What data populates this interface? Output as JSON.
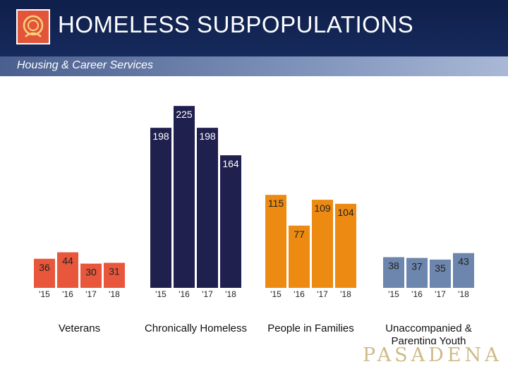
{
  "header": {
    "title": "HOMELESS SUBPOPULATIONS",
    "subtitle": "Housing & Career Services"
  },
  "brand": "PASADENA",
  "colors": {
    "header_bg": "#12224f",
    "veterans": "#e8563c",
    "chronically_homeless": "#20204f",
    "families": "#ec8a12",
    "youth": "#6d86ad"
  },
  "chart_data": {
    "type": "bar",
    "title": "",
    "xlabel": "",
    "ylabel": "",
    "ylim": [
      0,
      240
    ],
    "grid": false,
    "legend": "none",
    "groups": [
      {
        "label": "Veterans",
        "color": "#e8563c",
        "categories": [
          "'15",
          "'16",
          "'17",
          "'18"
        ],
        "values": [
          36,
          44,
          30,
          31
        ]
      },
      {
        "label": "Chronically Homeless",
        "color": "#20204f",
        "categories": [
          "'15",
          "'16",
          "'17",
          "'18"
        ],
        "values": [
          198,
          225,
          198,
          164
        ]
      },
      {
        "label": "People in Families",
        "color": "#ec8a12",
        "categories": [
          "'15",
          "'16",
          "'17",
          "'18"
        ],
        "values": [
          115,
          77,
          109,
          104
        ]
      },
      {
        "label": "Unaccompanied & Parenting Youth",
        "color": "#6d86ad",
        "categories": [
          "'15",
          "'16",
          "'17",
          "'18"
        ],
        "values": [
          38,
          37,
          35,
          43
        ]
      }
    ]
  }
}
